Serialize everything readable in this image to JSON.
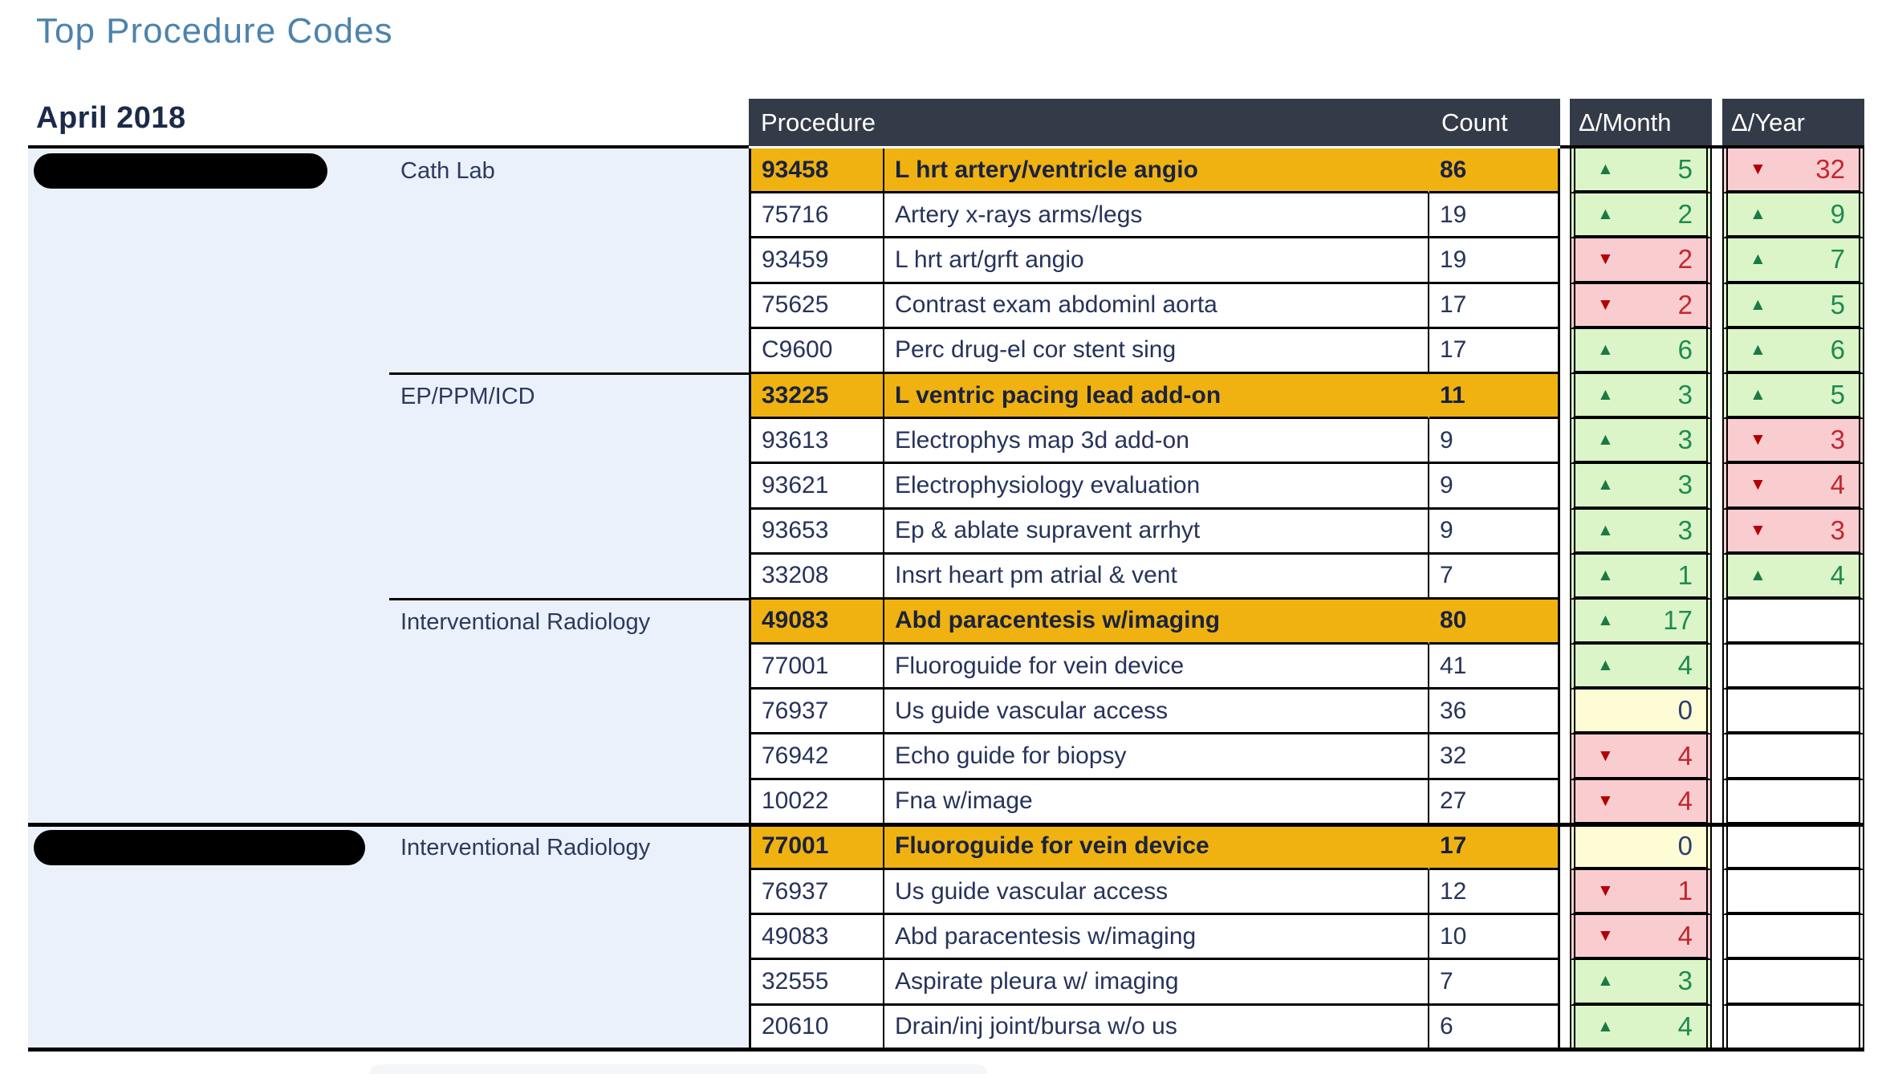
{
  "page": {
    "title": "Top Procedure Codes",
    "period": "April 2018"
  },
  "colors": {
    "title_blue": "#4C83AD",
    "period_navy": "#1B2A4A",
    "header_bg": "#343B48",
    "panel_blue": "#EBF1FA",
    "highlight_orange": "#EFB211",
    "text_navy": "#26335A",
    "delta_up_bg": "#DBF5C8",
    "delta_up_text": "#1F8A50",
    "delta_up_arrow": "#1B7A44",
    "delta_down_bg": "#F9CDD0",
    "delta_down_text": "#C2262E",
    "delta_down_arrow": "#B30000",
    "delta_zero_bg": "#FEFCD5",
    "delta_zero_text": "#2C3E6B"
  },
  "icons": {
    "up": "▲",
    "down": "▼"
  },
  "table": {
    "headers": {
      "procedure": "Procedure",
      "count": "Count",
      "delta_month": "Δ/Month",
      "delta_year": "Δ/Year"
    },
    "groups": [
      {
        "facility_redacted": true,
        "sections": [
          {
            "category": "Cath Lab",
            "rows": [
              {
                "code": "93458",
                "description": "L hrt artery/ventricle angio",
                "count": "86",
                "highlight": true,
                "delta_month": {
                  "dir": "up",
                  "value": "5"
                },
                "delta_year": {
                  "dir": "down",
                  "value": "32"
                }
              },
              {
                "code": "75716",
                "description": "Artery x-rays arms/legs",
                "count": "19",
                "highlight": false,
                "delta_month": {
                  "dir": "up",
                  "value": "2"
                },
                "delta_year": {
                  "dir": "up",
                  "value": "9"
                }
              },
              {
                "code": "93459",
                "description": "L hrt art/grft angio",
                "count": "19",
                "highlight": false,
                "delta_month": {
                  "dir": "down",
                  "value": "2"
                },
                "delta_year": {
                  "dir": "up",
                  "value": "7"
                }
              },
              {
                "code": "75625",
                "description": "Contrast exam abdominl aorta",
                "count": "17",
                "highlight": false,
                "delta_month": {
                  "dir": "down",
                  "value": "2"
                },
                "delta_year": {
                  "dir": "up",
                  "value": "5"
                }
              },
              {
                "code": "C9600",
                "description": "Perc drug-el cor stent sing",
                "count": "17",
                "highlight": false,
                "delta_month": {
                  "dir": "up",
                  "value": "6"
                },
                "delta_year": {
                  "dir": "up",
                  "value": "6"
                }
              }
            ]
          },
          {
            "category": "EP/PPM/ICD",
            "rows": [
              {
                "code": "33225",
                "description": "L ventric pacing lead add-on",
                "count": "11",
                "highlight": true,
                "delta_month": {
                  "dir": "up",
                  "value": "3"
                },
                "delta_year": {
                  "dir": "up",
                  "value": "5"
                }
              },
              {
                "code": "93613",
                "description": "Electrophys map 3d add-on",
                "count": "9",
                "highlight": false,
                "delta_month": {
                  "dir": "up",
                  "value": "3"
                },
                "delta_year": {
                  "dir": "down",
                  "value": "3"
                }
              },
              {
                "code": "93621",
                "description": "Electrophysiology evaluation",
                "count": "9",
                "highlight": false,
                "delta_month": {
                  "dir": "up",
                  "value": "3"
                },
                "delta_year": {
                  "dir": "down",
                  "value": "4"
                }
              },
              {
                "code": "93653",
                "description": "Ep & ablate supravent arrhyt",
                "count": "9",
                "highlight": false,
                "delta_month": {
                  "dir": "up",
                  "value": "3"
                },
                "delta_year": {
                  "dir": "down",
                  "value": "3"
                }
              },
              {
                "code": "33208",
                "description": "Insrt heart pm atrial & vent",
                "count": "7",
                "highlight": false,
                "delta_month": {
                  "dir": "up",
                  "value": "1"
                },
                "delta_year": {
                  "dir": "up",
                  "value": "4"
                }
              }
            ]
          },
          {
            "category": "Interventional Radiology",
            "rows": [
              {
                "code": "49083",
                "description": "Abd paracentesis w/imaging",
                "count": "80",
                "highlight": true,
                "delta_month": {
                  "dir": "up",
                  "value": "17"
                },
                "delta_year": null
              },
              {
                "code": "77001",
                "description": "Fluoroguide for vein device",
                "count": "41",
                "highlight": false,
                "delta_month": {
                  "dir": "up",
                  "value": "4"
                },
                "delta_year": null
              },
              {
                "code": "76937",
                "description": "Us guide vascular access",
                "count": "36",
                "highlight": false,
                "delta_month": {
                  "dir": "zero",
                  "value": "0"
                },
                "delta_year": null
              },
              {
                "code": "76942",
                "description": "Echo guide for biopsy",
                "count": "32",
                "highlight": false,
                "delta_month": {
                  "dir": "down",
                  "value": "4"
                },
                "delta_year": null
              },
              {
                "code": "10022",
                "description": "Fna w/image",
                "count": "27",
                "highlight": false,
                "delta_month": {
                  "dir": "down",
                  "value": "4"
                },
                "delta_year": null
              }
            ]
          }
        ]
      },
      {
        "facility_redacted": true,
        "sections": [
          {
            "category": "Interventional Radiology",
            "rows": [
              {
                "code": "77001",
                "description": "Fluoroguide for vein device",
                "count": "17",
                "highlight": true,
                "delta_month": {
                  "dir": "zero",
                  "value": "0"
                },
                "delta_year": null
              },
              {
                "code": "76937",
                "description": "Us guide vascular access",
                "count": "12",
                "highlight": false,
                "delta_month": {
                  "dir": "down",
                  "value": "1"
                },
                "delta_year": null
              },
              {
                "code": "49083",
                "description": "Abd paracentesis w/imaging",
                "count": "10",
                "highlight": false,
                "delta_month": {
                  "dir": "down",
                  "value": "4"
                },
                "delta_year": null
              },
              {
                "code": "32555",
                "description": "Aspirate pleura w/ imaging",
                "count": "7",
                "highlight": false,
                "delta_month": {
                  "dir": "up",
                  "value": "3"
                },
                "delta_year": null
              },
              {
                "code": "20610",
                "description": "Drain/inj joint/bursa w/o us",
                "count": "6",
                "highlight": false,
                "delta_month": {
                  "dir": "up",
                  "value": "4"
                },
                "delta_year": null
              }
            ]
          }
        ]
      }
    ]
  }
}
